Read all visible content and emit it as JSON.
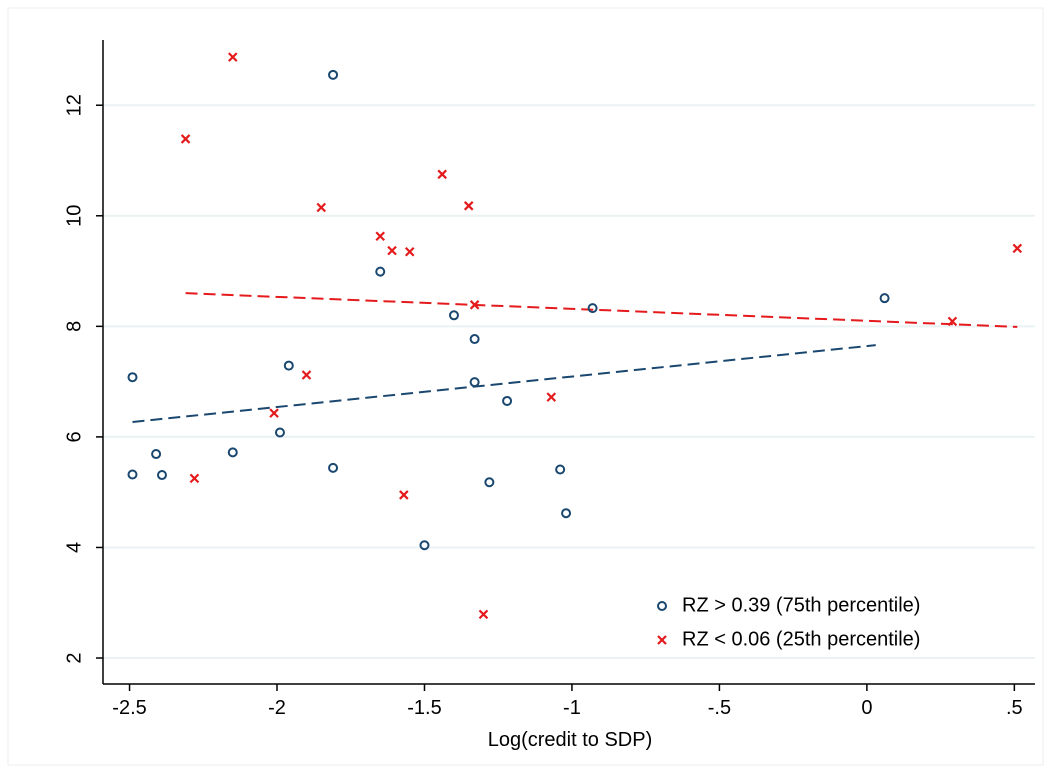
{
  "chart_data": {
    "type": "scatter",
    "x_label": "Log(credit to SDP)",
    "xlim": [
      -2.59,
      0.57
    ],
    "ylim": [
      1.53,
      13.18
    ],
    "xticks": [
      -2.5,
      -2,
      -1.5,
      -1,
      {
        "value": -0.5,
        "label": "-.5"
      },
      0,
      {
        "value": 0.5,
        "label": ".5"
      }
    ],
    "yticks": [
      2,
      4,
      6,
      8,
      10,
      12
    ],
    "grid": true,
    "legend": "bottom-right",
    "series": [
      {
        "name": "RZ > 0.39 (75th percentile)",
        "color": "#1a476f",
        "marker": "circle",
        "x": [
          -2.49,
          -2.49,
          -2.41,
          -2.39,
          -2.15,
          -1.99,
          -1.96,
          -1.81,
          -1.81,
          -1.65,
          -1.5,
          -1.4,
          -1.33,
          -1.33,
          -1.28,
          -1.22,
          -1.04,
          -1.02,
          -0.93,
          0.06
        ],
        "values": [
          7.08,
          5.32,
          5.69,
          5.31,
          5.72,
          6.08,
          7.29,
          12.55,
          5.44,
          8.99,
          4.04,
          8.2,
          7.77,
          6.99,
          5.18,
          6.65,
          5.41,
          4.62,
          8.33,
          8.51
        ]
      },
      {
        "name": "RZ < 0.06 (25th percentile)",
        "color": "#e41a1c",
        "marker": "x",
        "x": [
          -2.15,
          -2.31,
          -2.28,
          -2.01,
          -1.9,
          -1.85,
          -1.65,
          -1.61,
          -1.55,
          -1.57,
          -1.44,
          -1.35,
          -1.33,
          -1.3,
          -1.07,
          0.29,
          0.51
        ],
        "values": [
          12.87,
          11.39,
          5.25,
          6.43,
          7.12,
          10.15,
          9.63,
          9.37,
          9.35,
          4.95,
          10.75,
          10.18,
          8.39,
          2.79,
          6.72,
          8.09,
          9.41
        ]
      }
    ],
    "fit_lines": [
      {
        "color": "#1a476f",
        "x": [
          -2.49,
          0.03
        ],
        "values": [
          6.27,
          7.66
        ]
      },
      {
        "color": "#e41a1c",
        "x": [
          -2.31,
          0.51
        ],
        "values": [
          8.6,
          7.99
        ]
      }
    ]
  }
}
